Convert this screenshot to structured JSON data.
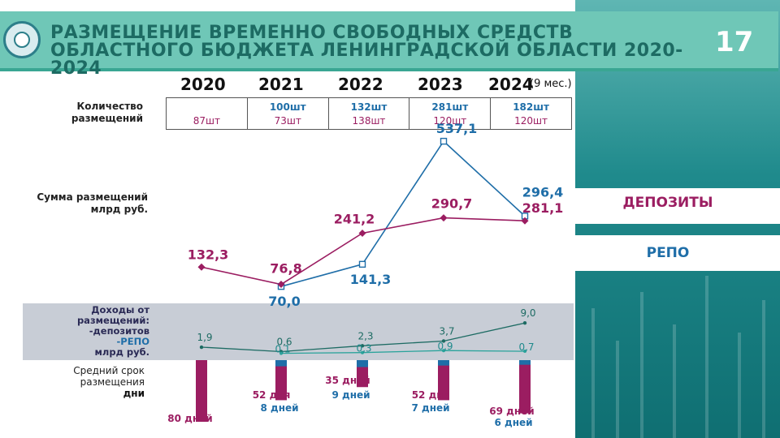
{
  "header": {
    "title": "РАЗМЕЩЕНИЕ ВРЕМЕННО СВОБОДНЫХ СРЕДСТВ ОБЛАСТНОГО БЮДЖЕТА ЛЕНИНГРАДСКОЙ ОБЛАСТИ 2020-2024",
    "page_number": "17"
  },
  "legend": {
    "deposits": "ДЕПОЗИТЫ",
    "repo": "РЕПО"
  },
  "labels": {
    "count": "Количество размещений",
    "sum": "Сумма размещений млрд руб.",
    "income_title": "Доходы от размещений:",
    "income_dep": "-депозитов",
    "income_rep": "-РЕПО",
    "income_unit": "млрд руб.",
    "term": "Средний срок размещения",
    "term_unit": "дни",
    "year_note": "(9 мес.)"
  },
  "colors": {
    "deposits": "#9b1d61",
    "repo": "#1f6ea8",
    "teal": "#6fc7b7"
  },
  "chart_data": {
    "type": "line",
    "categories": [
      "2020",
      "2021",
      "2022",
      "2023",
      "2024"
    ],
    "counts": {
      "repo": [
        "",
        "100шт",
        "132шт",
        "281шт",
        "182шт"
      ],
      "deposits": [
        "87шт",
        "73шт",
        "138шт",
        "120шт",
        "120шт"
      ]
    },
    "series": [
      {
        "name": "ДЕПОЗИТЫ",
        "values": [
          132.3,
          76.8,
          241.2,
          290.7,
          281.1
        ],
        "labels": [
          "132,3",
          "76,8",
          "241,2",
          "290,7",
          "281,1"
        ]
      },
      {
        "name": "РЕПО",
        "values": [
          null,
          70.0,
          141.3,
          537.1,
          296.4
        ],
        "labels": [
          "",
          "70,0",
          "141,3",
          "537,1",
          "296,4"
        ]
      }
    ],
    "income": {
      "deposits": [
        1.9,
        0.6,
        2.3,
        3.7,
        9.0
      ],
      "deposits_labels": [
        "1,9",
        "0,6",
        "2,3",
        "3,7",
        "9,0"
      ],
      "repo": [
        null,
        0.1,
        0.3,
        0.9,
        0.7
      ],
      "repo_labels": [
        "",
        "0,1",
        "0,3",
        "0,9",
        "0,7"
      ]
    },
    "avg_term_days": {
      "deposits": [
        80,
        52,
        35,
        52,
        69
      ],
      "deposits_labels": [
        "80 дней",
        "52 дня",
        "35 дней",
        "52 дня",
        "69 дней"
      ],
      "repo": [
        null,
        8,
        9,
        7,
        6
      ],
      "repo_labels": [
        "",
        "8 дней",
        "9 дней",
        "7 дней",
        "6 дней"
      ]
    }
  }
}
